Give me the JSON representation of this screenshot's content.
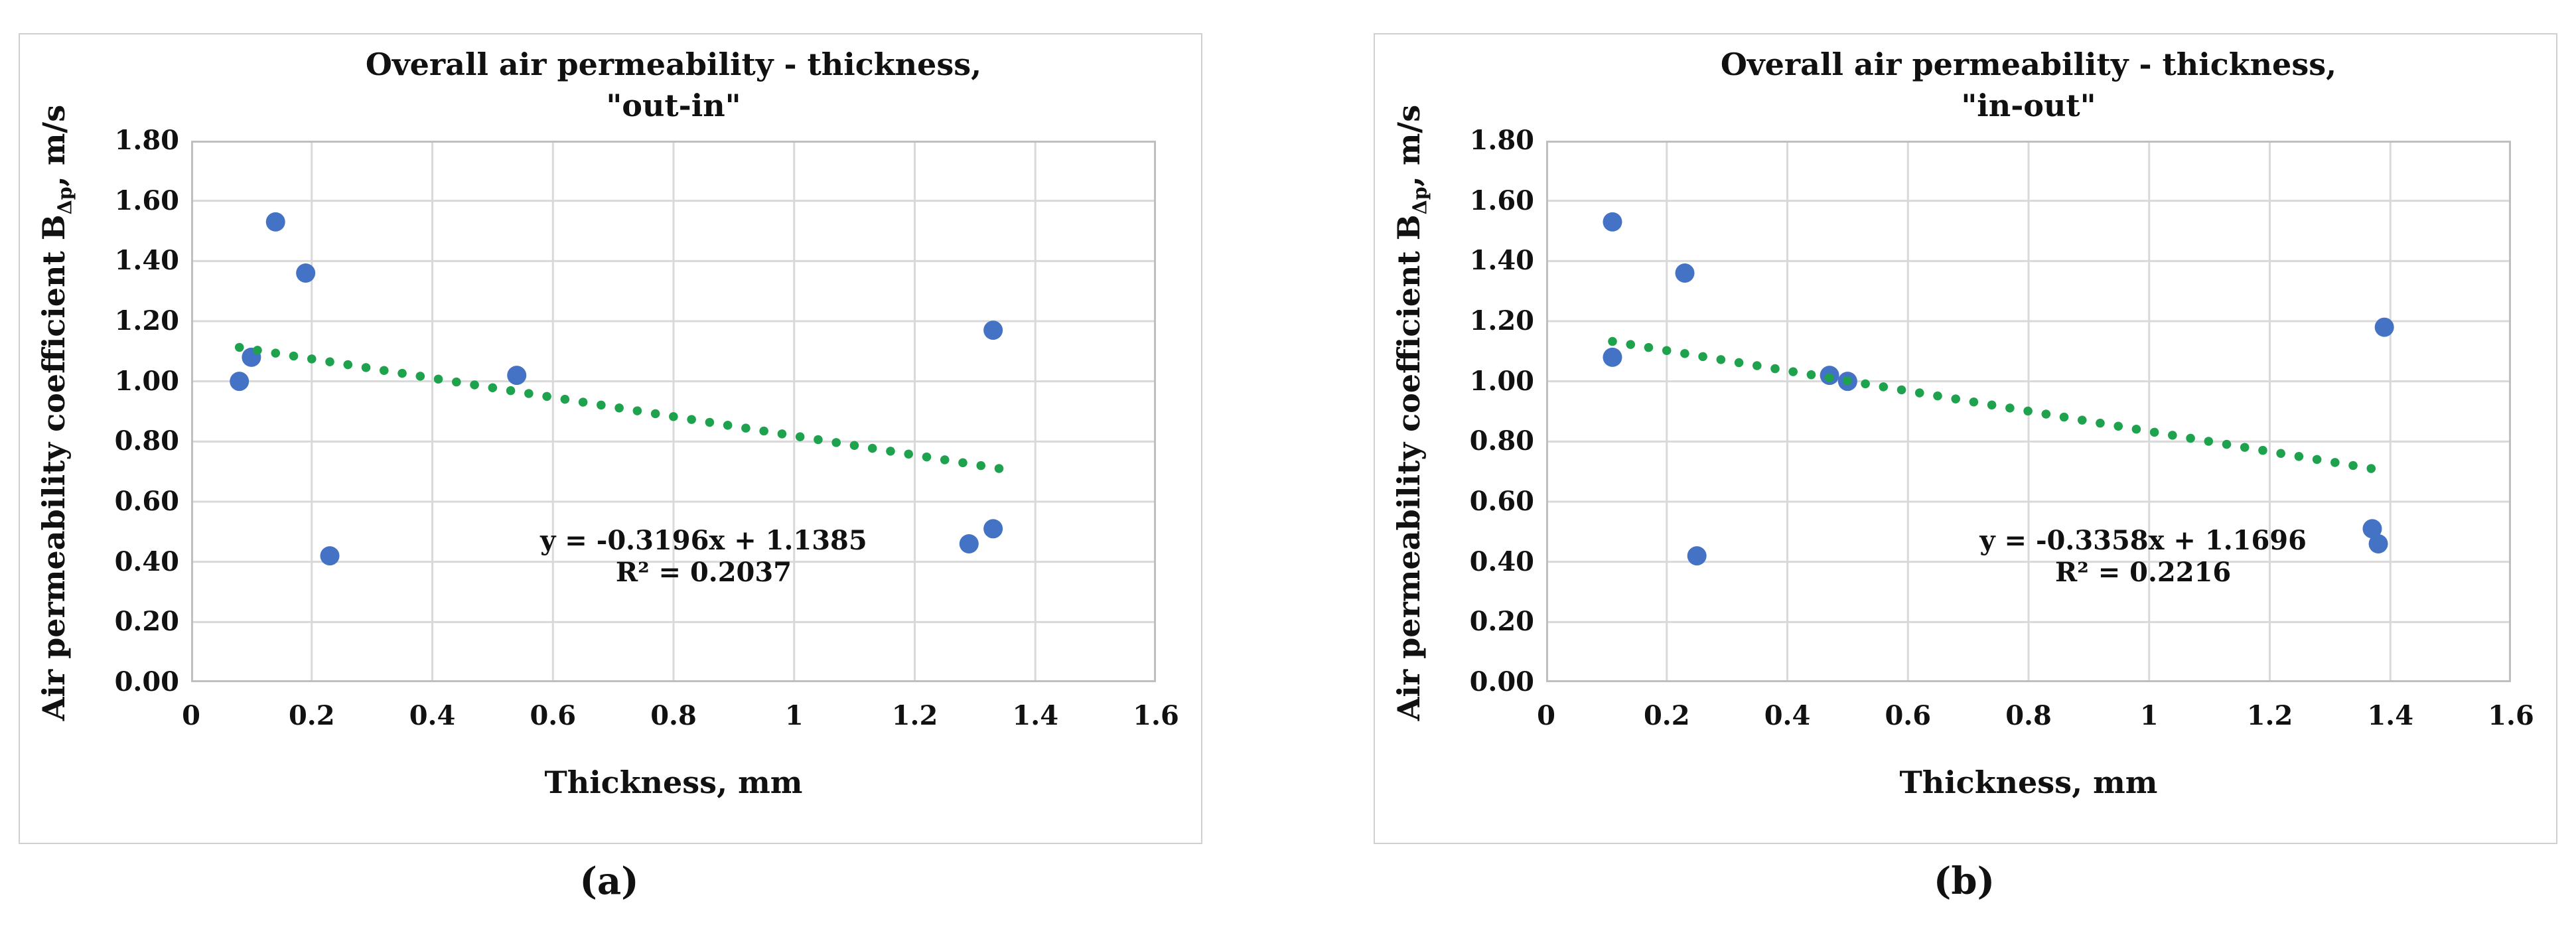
{
  "page_background": "#ffffff",
  "panel_style": {
    "border_color": "#d0d0d0",
    "background": "#ffffff"
  },
  "colors": {
    "point": "#4472C4",
    "trend": "#1FA24D",
    "gridline": "#d9d9d9",
    "plot_border": "#bfbfbf",
    "text": "#111111"
  },
  "captions": [
    {
      "label": "(a)"
    },
    {
      "label": "(b)"
    }
  ],
  "chart_data": [
    {
      "type": "scatter",
      "title": "Overall air permeability - thickness,",
      "subtitle": "\"out-in\"",
      "xlabel": "Thickness, mm",
      "ylabel": "Air permeability coefficient BΔp, m/s",
      "ylabel_parts": {
        "prefix": "Air permeability coefficient B",
        "subscript": "Δp",
        "suffix": ", m/s"
      },
      "xlim": [
        0,
        1.6
      ],
      "ylim": [
        0,
        1.8
      ],
      "grid": true,
      "legend": "none",
      "x_ticks": [
        0,
        0.2,
        0.4,
        0.6,
        0.8,
        1,
        1.2,
        1.4,
        1.6
      ],
      "x_tick_labels": [
        "0",
        "0.2",
        "0.4",
        "0.6",
        "0.8",
        "1",
        "1.2",
        "1.4",
        "1.6"
      ],
      "y_ticks": [
        0,
        0.2,
        0.4,
        0.6,
        0.8,
        1.0,
        1.2,
        1.4,
        1.6,
        1.8
      ],
      "y_tick_labels": [
        "0.00",
        "0.20",
        "0.40",
        "0.60",
        "0.80",
        "1.00",
        "1.20",
        "1.40",
        "1.60",
        "1.80"
      ],
      "points": [
        [
          0.08,
          1.0
        ],
        [
          0.1,
          1.08
        ],
        [
          0.14,
          1.53
        ],
        [
          0.19,
          1.36
        ],
        [
          0.23,
          0.42
        ],
        [
          0.54,
          1.02
        ],
        [
          1.29,
          0.46
        ],
        [
          1.33,
          0.51
        ],
        [
          1.33,
          1.17
        ]
      ],
      "point_color": "#4472C4",
      "trendline": {
        "style": "dotted",
        "color": "#1FA24D",
        "slope": -0.3196,
        "intercept": 1.1385,
        "x_start": 0.08,
        "x_end": 1.34
      },
      "equation": "y = -0.3196x + 1.1385",
      "r_squared": "R² = 0.2037",
      "annotation_anchor": {
        "x": 0.85,
        "y1": 0.47,
        "y2": 0.365
      }
    },
    {
      "type": "scatter",
      "title": "Overall air permeability - thickness,",
      "subtitle": "\"in-out\"",
      "xlabel": "Thickness, mm",
      "ylabel": "Air permeability coefficient BΔp, m/s",
      "ylabel_parts": {
        "prefix": "Air permeability coefficient B",
        "subscript": "Δp",
        "suffix": ", m/s"
      },
      "xlim": [
        0,
        1.6
      ],
      "ylim": [
        0,
        1.8
      ],
      "grid": true,
      "legend": "none",
      "x_ticks": [
        0,
        0.2,
        0.4,
        0.6,
        0.8,
        1,
        1.2,
        1.4,
        1.6
      ],
      "x_tick_labels": [
        "0",
        "0.2",
        "0.4",
        "0.6",
        "0.8",
        "1",
        "1.2",
        "1.4",
        "1.6"
      ],
      "y_ticks": [
        0,
        0.2,
        0.4,
        0.6,
        0.8,
        1.0,
        1.2,
        1.4,
        1.6,
        1.8
      ],
      "y_tick_labels": [
        "0.00",
        "0.20",
        "0.40",
        "0.60",
        "0.80",
        "1.00",
        "1.20",
        "1.40",
        "1.60",
        "1.80"
      ],
      "points": [
        [
          0.11,
          1.53
        ],
        [
          0.11,
          1.08
        ],
        [
          0.23,
          1.36
        ],
        [
          0.25,
          0.42
        ],
        [
          0.47,
          1.02
        ],
        [
          0.5,
          1.0
        ],
        [
          1.37,
          0.51
        ],
        [
          1.38,
          0.46
        ],
        [
          1.39,
          1.18
        ]
      ],
      "point_color": "#4472C4",
      "trendline": {
        "style": "dotted",
        "color": "#1FA24D",
        "slope": -0.3358,
        "intercept": 1.1696,
        "x_start": 0.11,
        "x_end": 1.39
      },
      "equation": "y = -0.3358x + 1.1696",
      "r_squared": "R² = 0.2216",
      "annotation_anchor": {
        "x": 0.99,
        "y1": 0.47,
        "y2": 0.365
      }
    }
  ]
}
